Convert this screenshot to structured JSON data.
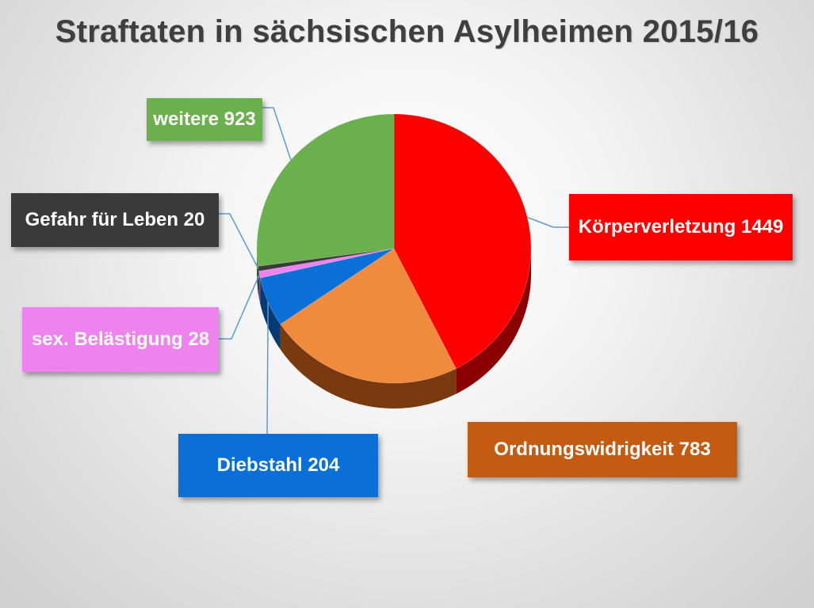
{
  "chart_data": {
    "type": "pie",
    "title": "Straftaten in sächsischen Asylheimen 2015/16",
    "slices": [
      {
        "label": "Körperverletzung",
        "value": 1449,
        "color": "#ff0000",
        "dark": "#8b0000",
        "label_text": "Körperverletzung 1449"
      },
      {
        "label": "Ordnungswidrigkeit",
        "value": 783,
        "color": "#f08a3c",
        "dark": "#7a3a10",
        "label_text": "Ordnungswidrigkeit 783",
        "box_color": "#c55a11"
      },
      {
        "label": "Diebstahl",
        "value": 204,
        "color": "#0a6fd6",
        "dark": "#053b73",
        "label_text": "Diebstahl 204"
      },
      {
        "label": "sex. Belästigung",
        "value": 28,
        "color": "#ee82ee",
        "dark": "#8a3f8a",
        "label_text": "sex. Belästigung 28"
      },
      {
        "label": "Gefahr für Leben",
        "value": 20,
        "color": "#3a3a3a",
        "dark": "#1a1a1a",
        "label_text": "Gefahr für Leben 20"
      },
      {
        "label": "weitere",
        "value": 923,
        "color": "#6ab04c",
        "dark": "#3b6a27",
        "label_text": "weitere 923"
      }
    ]
  }
}
